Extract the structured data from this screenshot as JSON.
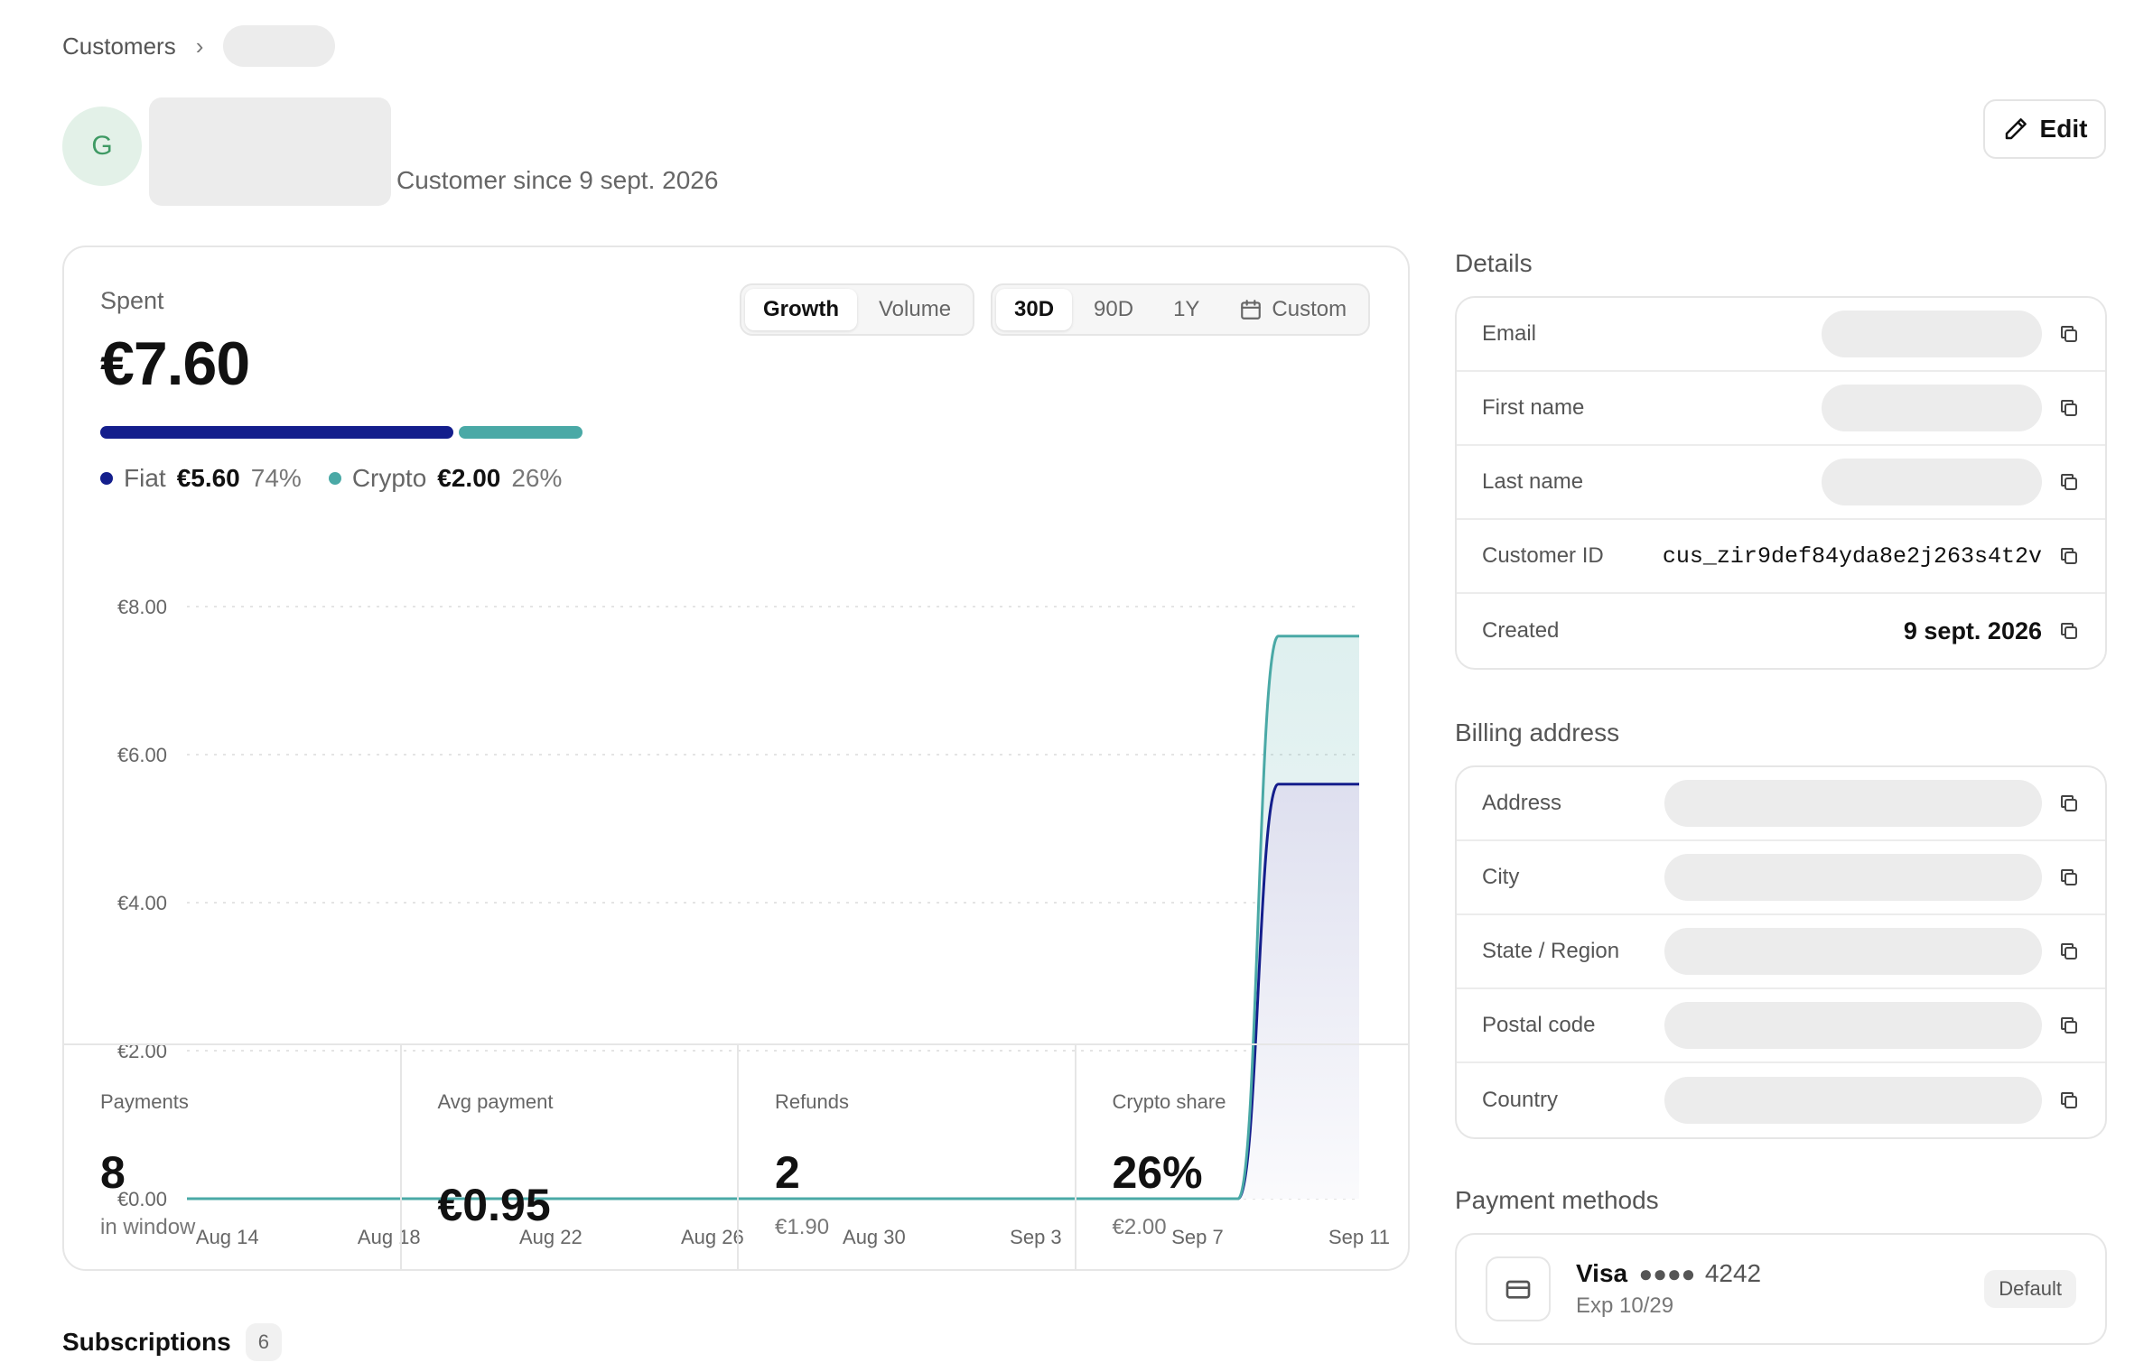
{
  "breadcrumb": {
    "root": "Customers",
    "separator": "›"
  },
  "header": {
    "avatar_initial": "G",
    "since": "Customer since 9 sept. 2026",
    "edit_label": "Edit"
  },
  "spent": {
    "label": "Spent",
    "value": "€7.60",
    "fiat": {
      "label": "Fiat",
      "amount": "€5.60",
      "pct": "74%",
      "share": 0.74,
      "color": "#141e8c"
    },
    "crypto": {
      "label": "Crypto",
      "amount": "€2.00",
      "pct": "26%",
      "share": 0.26,
      "color": "#4aa9a6"
    }
  },
  "mode_toggle": {
    "options": [
      "Growth",
      "Volume"
    ],
    "selected": "Growth"
  },
  "range_toggle": {
    "options": [
      "30D",
      "90D",
      "1Y"
    ],
    "custom": "Custom",
    "selected": "30D"
  },
  "chart_data": {
    "type": "area",
    "stacked": true,
    "x": [
      "Aug 13",
      "Aug 14",
      "Aug 15",
      "Aug 16",
      "Aug 17",
      "Aug 18",
      "Aug 19",
      "Aug 20",
      "Aug 21",
      "Aug 22",
      "Aug 23",
      "Aug 24",
      "Aug 25",
      "Aug 26",
      "Aug 27",
      "Aug 28",
      "Aug 29",
      "Aug 30",
      "Aug 31",
      "Sep 1",
      "Sep 2",
      "Sep 3",
      "Sep 4",
      "Sep 5",
      "Sep 6",
      "Sep 7",
      "Sep 8",
      "Sep 9",
      "Sep 10",
      "Sep 11"
    ],
    "x_tick_labels": [
      "Aug 14",
      "Aug 18",
      "Aug 22",
      "Aug 26",
      "Aug 30",
      "Sep 3",
      "Sep 7",
      "Sep 11"
    ],
    "series": [
      {
        "name": "Fiat",
        "color": "#141e8c",
        "values": [
          0,
          0,
          0,
          0,
          0,
          0,
          0,
          0,
          0,
          0,
          0,
          0,
          0,
          0,
          0,
          0,
          0,
          0,
          0,
          0,
          0,
          0,
          0,
          0,
          0,
          0,
          0,
          5.6,
          5.6,
          5.6
        ]
      },
      {
        "name": "Crypto",
        "color": "#4aa9a6",
        "values": [
          0,
          0,
          0,
          0,
          0,
          0,
          0,
          0,
          0,
          0,
          0,
          0,
          0,
          0,
          0,
          0,
          0,
          0,
          0,
          0,
          0,
          0,
          0,
          0,
          0,
          0,
          0,
          2.0,
          2.0,
          2.0
        ]
      }
    ],
    "y_tick_labels": [
      "€0.00",
      "€2.00",
      "€4.00",
      "€6.00",
      "€8.00"
    ],
    "ylim": [
      0,
      8
    ],
    "grid": true
  },
  "kpis": [
    {
      "label": "Payments",
      "value": "8",
      "sub": "in window"
    },
    {
      "label": "Avg payment",
      "value": "€0.95",
      "sub": ""
    },
    {
      "label": "Refunds",
      "value": "2",
      "sub": "€1.90"
    },
    {
      "label": "Crypto share",
      "value": "26%",
      "sub": "€2.00"
    }
  ],
  "subscriptions": {
    "title": "Subscriptions",
    "count": "6"
  },
  "details": {
    "title": "Details",
    "rows": [
      {
        "label": "Email",
        "value": null
      },
      {
        "label": "First name",
        "value": null
      },
      {
        "label": "Last name",
        "value": null
      },
      {
        "label": "Customer ID",
        "value": "cus_zir9def84yda8e2j263s4t2v"
      },
      {
        "label": "Created",
        "value": "9 sept. 2026"
      }
    ]
  },
  "billing": {
    "title": "Billing address",
    "rows": [
      {
        "label": "Address"
      },
      {
        "label": "City"
      },
      {
        "label": "State / Region"
      },
      {
        "label": "Postal code"
      },
      {
        "label": "Country"
      }
    ]
  },
  "payment_methods": {
    "title": "Payment methods",
    "card": {
      "brand": "Visa",
      "dots": "●●●●",
      "last4": "4242",
      "expiry": "Exp 10/29",
      "badge": "Default"
    }
  }
}
